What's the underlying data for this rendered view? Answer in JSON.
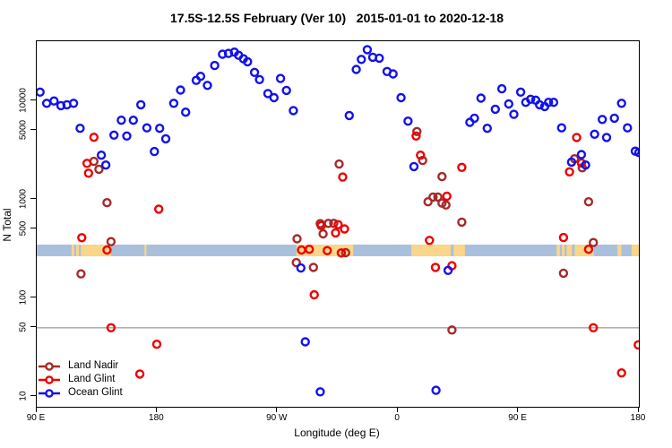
{
  "title": "17.5S-12.5S February (Ver 10)   2015-01-01 to 2020-12-18",
  "chart_data": {
    "type": "scatter",
    "title": "17.5S-12.5S February (Ver 10)   2015-01-01 to 2020-12-18",
    "xlabel": "Longitude (deg E)",
    "ylabel": "N Total",
    "x_axis_note": "axis wraps eastward from 90E: 90E,180,90W,0,90E,180 (450 deg span)",
    "y_scale": "log",
    "ylim": [
      8,
      42000
    ],
    "grid": false,
    "legend_position": "bottom-left-inside",
    "reference_line_n": 50,
    "reference_line_color": "#808080",
    "x_ticks": [
      {
        "deg": 0,
        "label": "90 E"
      },
      {
        "deg": 90,
        "label": "180"
      },
      {
        "deg": 180,
        "label": "90 W"
      },
      {
        "deg": 270,
        "label": "0"
      },
      {
        "deg": 360,
        "label": "90 E"
      },
      {
        "deg": 450,
        "label": "180"
      }
    ],
    "y_ticks": [
      {
        "value": 10,
        "label": "10"
      },
      {
        "value": 50,
        "label": "50"
      },
      {
        "value": 100,
        "label": "100"
      },
      {
        "value": 500,
        "label": "500"
      },
      {
        "value": 1000,
        "label": "1000"
      },
      {
        "value": 5000,
        "label": "5000"
      },
      {
        "value": 10000,
        "label": "10000"
      }
    ],
    "map_strip": {
      "comment": "world land/ocean strip for 17.5S-12.5S drawn across plot",
      "ocean_color": "#AABFDC",
      "land_color": "#FAD689",
      "n_range": [
        266,
        349
      ],
      "land_patches_deg": [
        [
          26,
          28
        ],
        [
          29.5,
          31.5
        ],
        [
          33,
          35
        ],
        [
          35,
          55.5
        ],
        [
          80.5,
          82
        ],
        [
          194,
          236.5
        ],
        [
          280,
          309.5
        ],
        [
          311.5,
          320
        ],
        [
          388.5,
          391
        ],
        [
          392.5,
          394.5
        ],
        [
          396,
          400
        ],
        [
          402,
          416.5
        ],
        [
          434,
          437
        ],
        [
          444.5,
          450
        ]
      ]
    },
    "series": [
      {
        "name": "Land Nadir",
        "color": "#A52A2A",
        "points": [
          [
            42.7,
            2440
          ],
          [
            46.5,
            2030
          ],
          [
            52.5,
            930
          ],
          [
            33.1,
            176
          ],
          [
            55.5,
            374
          ],
          [
            226,
            2290
          ],
          [
            194.5,
            400
          ],
          [
            211.9,
            569
          ],
          [
            218,
            573
          ],
          [
            222,
            573
          ],
          [
            214,
            449
          ],
          [
            230.9,
            289
          ],
          [
            206.8,
            205
          ],
          [
            194,
            229
          ],
          [
            284.1,
            4900
          ],
          [
            288.4,
            2490
          ],
          [
            302.9,
            1710
          ],
          [
            292.4,
            950
          ],
          [
            296.2,
            1060
          ],
          [
            299.8,
            1060
          ],
          [
            302.9,
            920
          ],
          [
            305.8,
            880
          ],
          [
            317.7,
            590
          ],
          [
            310.3,
            47.5
          ],
          [
            393.7,
            179
          ],
          [
            401.9,
            2590
          ],
          [
            407.7,
            2100
          ],
          [
            412.4,
            950
          ],
          [
            416,
            366
          ]
        ]
      },
      {
        "name": "Land Glint",
        "color": "#EE0000",
        "points": [
          [
            42.7,
            4280
          ],
          [
            37.6,
            2330
          ],
          [
            38.7,
            1850
          ],
          [
            91.2,
            800
          ],
          [
            33.7,
            410
          ],
          [
            52.5,
            308
          ],
          [
            55.5,
            50
          ],
          [
            89.7,
            34
          ],
          [
            77.1,
            17
          ],
          [
            197.9,
            308
          ],
          [
            203.7,
            313
          ],
          [
            212.6,
            544
          ],
          [
            217.1,
            303
          ],
          [
            225.3,
            557
          ],
          [
            223.3,
            459
          ],
          [
            230,
            503
          ],
          [
            227.6,
            287
          ],
          [
            207.4,
            108
          ],
          [
            228.7,
            1690
          ],
          [
            283.5,
            4410
          ],
          [
            286.8,
            2820
          ],
          [
            317.7,
            2120
          ],
          [
            306.5,
            1080
          ],
          [
            293.5,
            385
          ],
          [
            298,
            205
          ],
          [
            310.3,
            213
          ],
          [
            403.5,
            4270
          ],
          [
            398.2,
            1910
          ],
          [
            407.1,
            2350
          ],
          [
            393.7,
            412
          ],
          [
            412.4,
            313
          ],
          [
            416,
            50
          ],
          [
            449.5,
            33.5
          ],
          [
            437.1,
            17.4
          ]
        ]
      },
      {
        "name": "Ocean Glint",
        "color": "#1212EE",
        "points": [
          [
            2.5,
            12300
          ],
          [
            7.4,
            9470
          ],
          [
            12.9,
            10000
          ],
          [
            18.1,
            8970
          ],
          [
            22.6,
            9160
          ],
          [
            27.5,
            9470
          ],
          [
            32.4,
            5280
          ],
          [
            48.3,
            2820
          ],
          [
            51.6,
            2240
          ],
          [
            57.7,
            4500
          ],
          [
            63.2,
            6380
          ],
          [
            67.3,
            4410
          ],
          [
            72.2,
            6380
          ],
          [
            77.8,
            9160
          ],
          [
            82.3,
            5340
          ],
          [
            87.9,
            3070
          ],
          [
            91.9,
            5280
          ],
          [
            96.4,
            4130
          ],
          [
            102.4,
            9470
          ],
          [
            107.5,
            12900
          ],
          [
            111.3,
            7700
          ],
          [
            119.2,
            16200
          ],
          [
            122.5,
            17800
          ],
          [
            127.6,
            14400
          ],
          [
            133,
            22900
          ],
          [
            138.8,
            29800
          ],
          [
            143.3,
            30400
          ],
          [
            147.7,
            31300
          ],
          [
            150.9,
            29100
          ],
          [
            154.5,
            26800
          ],
          [
            157.6,
            25000
          ],
          [
            162.8,
            19500
          ],
          [
            166.5,
            16500
          ],
          [
            172.8,
            11900
          ],
          [
            177.3,
            10800
          ],
          [
            182.2,
            16900
          ],
          [
            186.6,
            12800
          ],
          [
            191.8,
            8000
          ],
          [
            197.4,
            202
          ],
          [
            200.7,
            36
          ],
          [
            211.9,
            11.2
          ],
          [
            233.6,
            7130
          ],
          [
            238.8,
            20900
          ],
          [
            242.6,
            26400
          ],
          [
            247,
            33200
          ],
          [
            251.1,
            27800
          ],
          [
            256,
            27200
          ],
          [
            261.8,
            19900
          ],
          [
            266.3,
            18800
          ],
          [
            272.3,
            10800
          ],
          [
            277.5,
            6240
          ],
          [
            281.9,
            2160
          ],
          [
            298.4,
            11.6
          ],
          [
            307.4,
            191
          ],
          [
            323.7,
            6070
          ],
          [
            327.1,
            6690
          ],
          [
            332,
            10700
          ],
          [
            336.7,
            5280
          ],
          [
            342.7,
            8250
          ],
          [
            347.6,
            13300
          ],
          [
            352.8,
            9330
          ],
          [
            356.6,
            7320
          ],
          [
            361.7,
            12300
          ],
          [
            365.5,
            9690
          ],
          [
            369.1,
            10400
          ],
          [
            372.9,
            10200
          ],
          [
            375.8,
            9160
          ],
          [
            379.6,
            8780
          ],
          [
            382.5,
            9690
          ],
          [
            386.3,
            9690
          ],
          [
            392.3,
            5340
          ],
          [
            399.7,
            2400
          ],
          [
            407.1,
            2860
          ],
          [
            410.2,
            2240
          ],
          [
            416.9,
            4600
          ],
          [
            422.7,
            6500
          ],
          [
            425.9,
            4270
          ],
          [
            431.7,
            6690
          ],
          [
            437.1,
            9470
          ],
          [
            441.5,
            5340
          ],
          [
            447.3,
            3100
          ],
          [
            450,
            3000
          ]
        ]
      }
    ]
  }
}
